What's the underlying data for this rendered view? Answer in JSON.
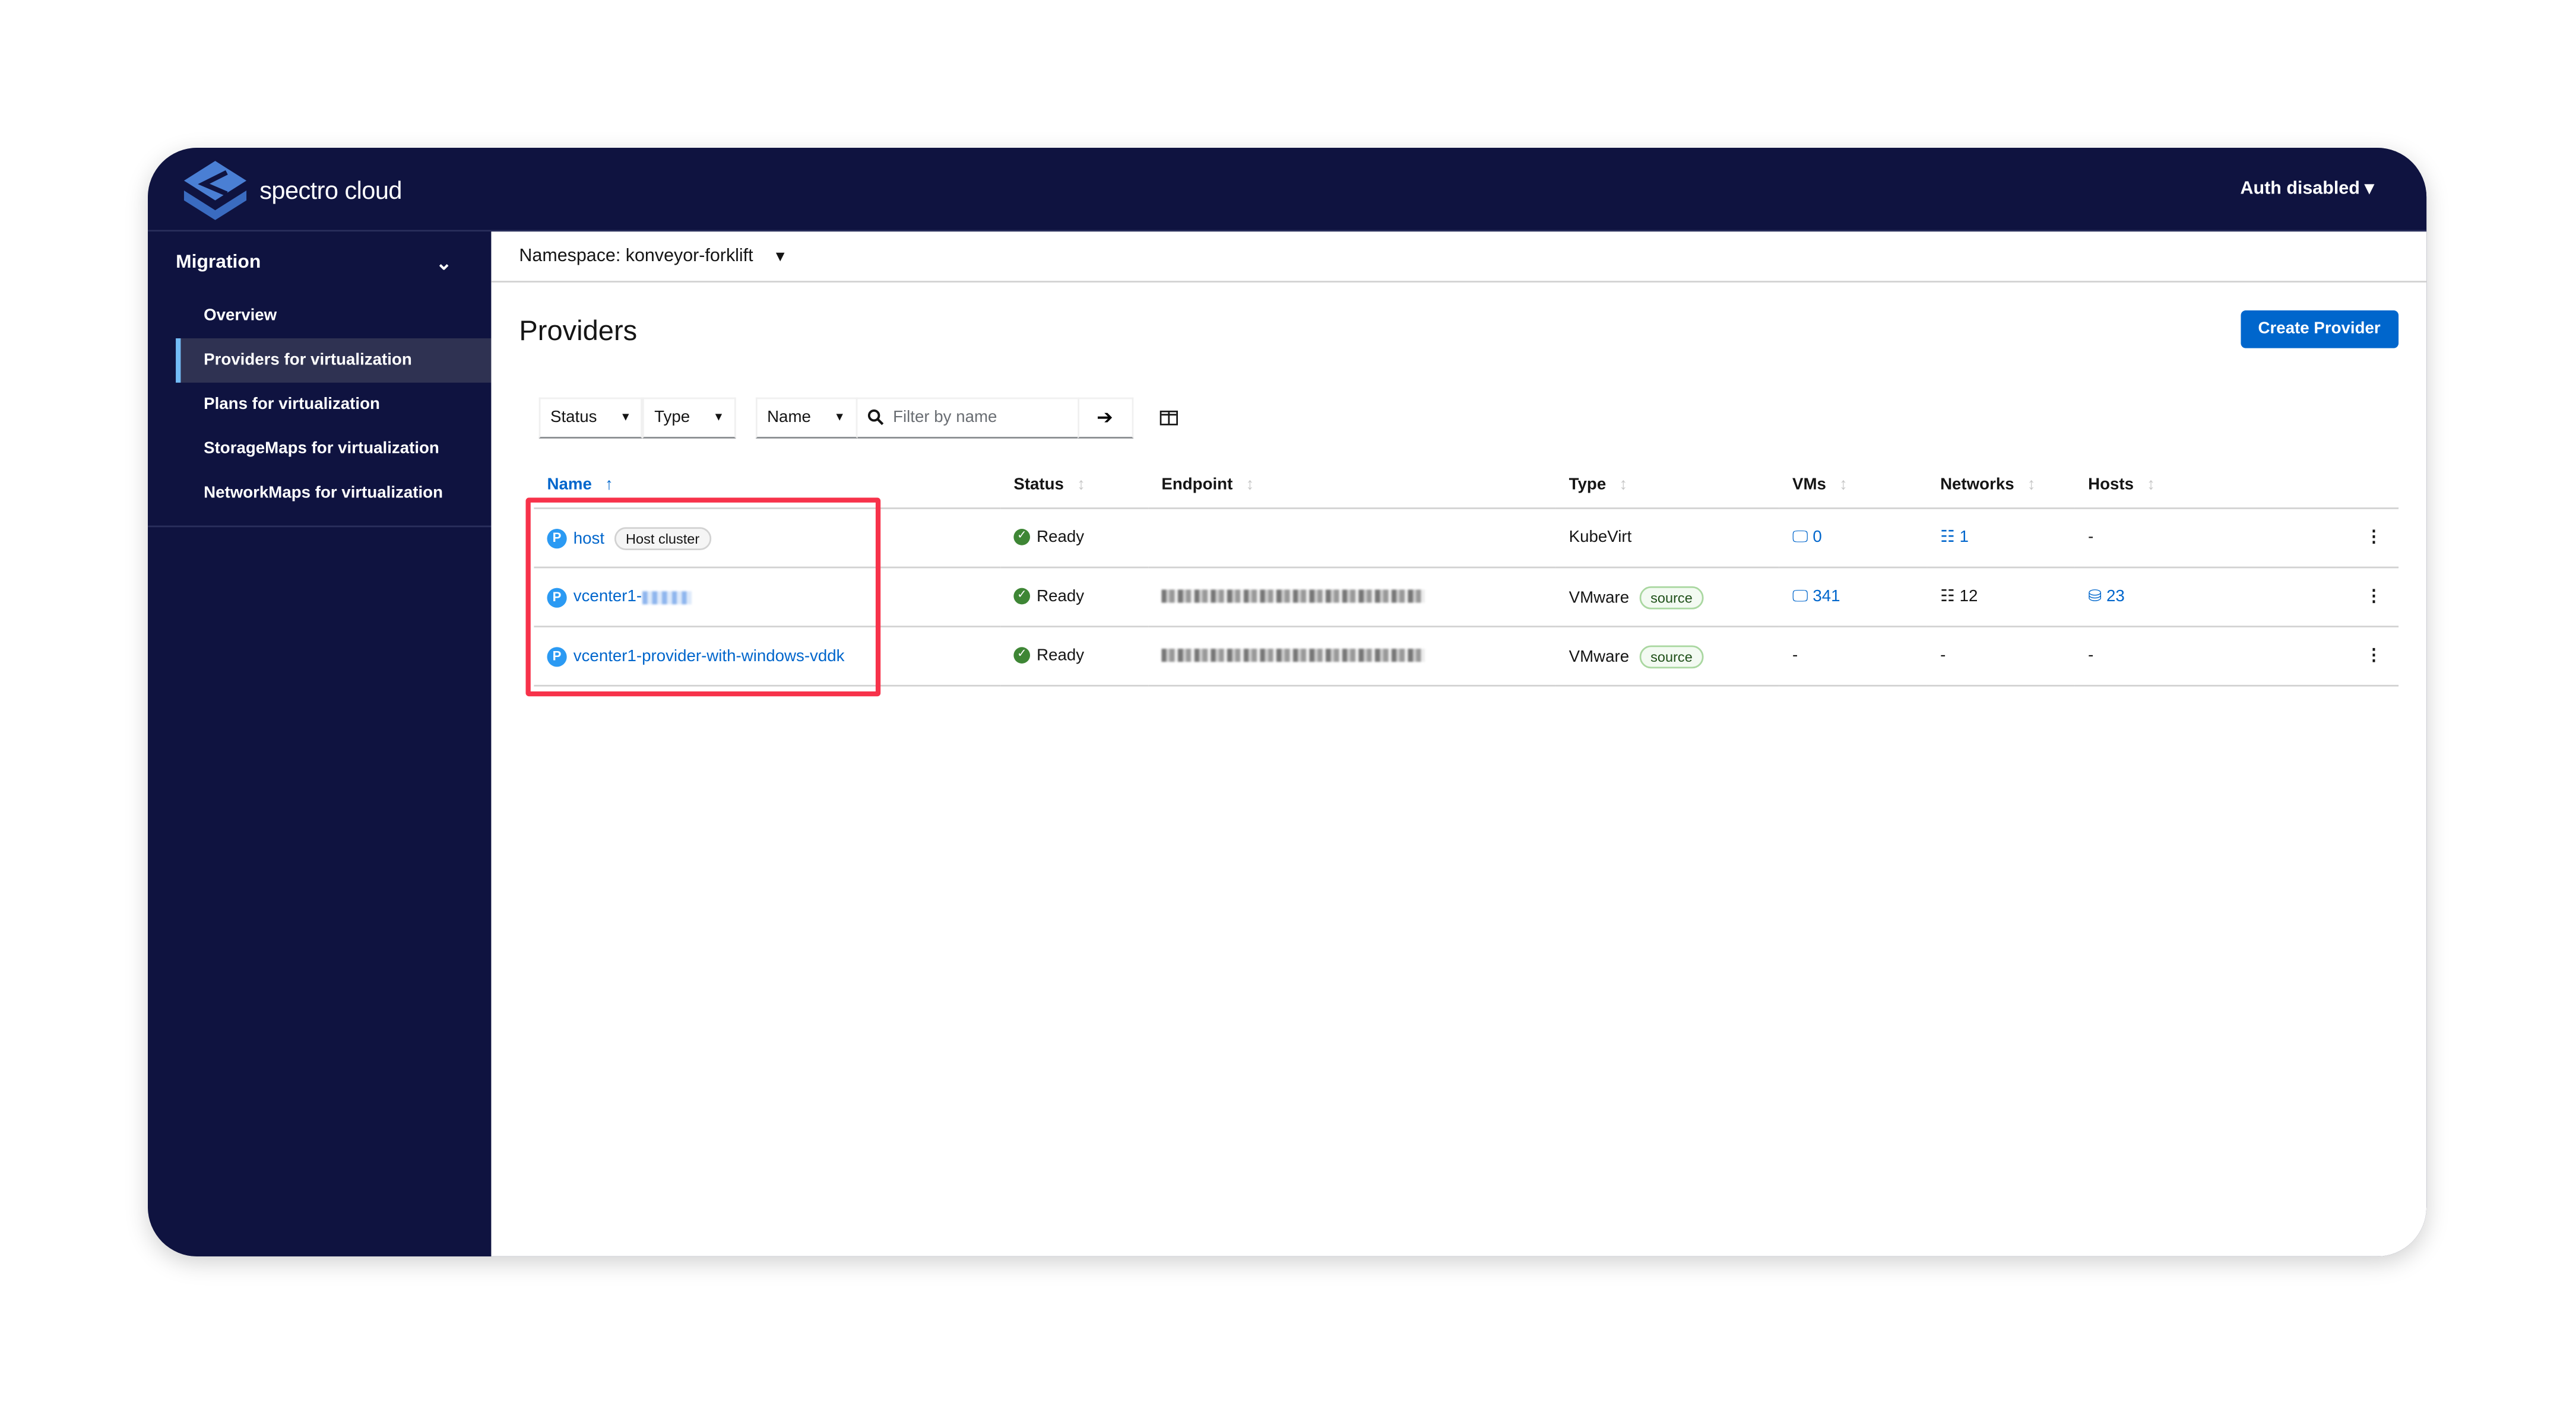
{
  "header": {
    "brand": "spectro cloud",
    "auth_menu": "Auth disabled"
  },
  "sidebar": {
    "section": "Migration",
    "items": [
      {
        "label": "Overview",
        "active": false
      },
      {
        "label": "Providers for virtualization",
        "active": true
      },
      {
        "label": "Plans for virtualization",
        "active": false
      },
      {
        "label": "StorageMaps for virtualization",
        "active": false
      },
      {
        "label": "NetworkMaps for virtualization",
        "active": false
      }
    ]
  },
  "main": {
    "namespace": "Namespace: konveyor-forklift",
    "title": "Providers",
    "create_button": "Create Provider",
    "filters": {
      "status": "Status",
      "type": "Type",
      "name": "Name",
      "search_placeholder": "Filter by name"
    },
    "columns": [
      "Name",
      "Status",
      "Endpoint",
      "Type",
      "VMs",
      "Networks",
      "Hosts"
    ],
    "rows": [
      {
        "badge": "P",
        "name": "host",
        "tag": "Host cluster",
        "status": "Ready",
        "type": "KubeVirt",
        "type_tag": "",
        "vms": "0",
        "networks": "1",
        "hosts": "-"
      },
      {
        "badge": "P",
        "name": "vcenter1-",
        "tag": "",
        "status": "Ready",
        "type": "VMware",
        "type_tag": "source",
        "vms": "341",
        "networks": "12",
        "hosts": "23"
      },
      {
        "badge": "P",
        "name": "vcenter1-provider-with-windows-vddk",
        "tag": "",
        "status": "Ready",
        "type": "VMware",
        "type_tag": "source",
        "vms": "-",
        "networks": "-",
        "hosts": "-"
      }
    ]
  },
  "colors": {
    "navy": "#0f1340",
    "accent": "#0066cc",
    "highlight": "#f7324a",
    "success": "#3e8635"
  }
}
